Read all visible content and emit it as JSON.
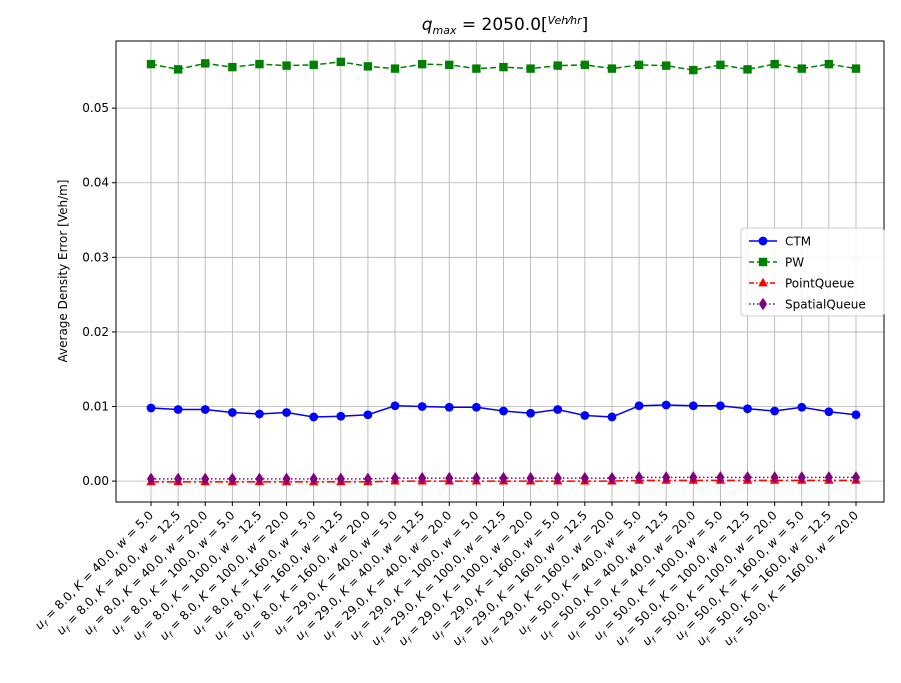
{
  "chart_data": {
    "type": "line",
    "title": "q_max = 2050.0[Veh/hr]",
    "title_parts": {
      "q": "q",
      "sub": "max",
      "eq": " = 2050.0[",
      "num": "Veh",
      "den": "hr",
      "close": "]"
    },
    "xlabel": "",
    "ylabel": "Average Density Error [Veh/m]",
    "ylim": [
      -0.0028,
      0.059
    ],
    "yticks": [
      0.0,
      0.01,
      0.02,
      0.03,
      0.04,
      0.05
    ],
    "ytick_labels": [
      "0.00",
      "0.01",
      "0.02",
      "0.03",
      "0.04",
      "0.05"
    ],
    "grid": true,
    "legend_position": "center-right",
    "categories": [
      "u_f = 8.0, K = 40.0, w = 5.0",
      "u_f = 8.0, K = 40.0, w = 12.5",
      "u_f = 8.0, K = 40.0, w = 20.0",
      "u_f = 8.0, K = 100.0, w = 5.0",
      "u_f = 8.0, K = 100.0, w = 12.5",
      "u_f = 8.0, K = 100.0, w = 20.0",
      "u_f = 8.0, K = 160.0, w = 5.0",
      "u_f = 8.0, K = 160.0, w = 12.5",
      "u_f = 8.0, K = 160.0, w = 20.0",
      "u_f = 29.0, K = 40.0, w = 5.0",
      "u_f = 29.0, K = 40.0, w = 12.5",
      "u_f = 29.0, K = 40.0, w = 20.0",
      "u_f = 29.0, K = 100.0, w = 5.0",
      "u_f = 29.0, K = 100.0, w = 12.5",
      "u_f = 29.0, K = 100.0, w = 20.0",
      "u_f = 29.0, K = 160.0, w = 5.0",
      "u_f = 29.0, K = 160.0, w = 12.5",
      "u_f = 29.0, K = 160.0, w = 20.0",
      "u_f = 50.0, K = 40.0, w = 5.0",
      "u_f = 50.0, K = 40.0, w = 12.5",
      "u_f = 50.0, K = 40.0, w = 20.0",
      "u_f = 50.0, K = 100.0, w = 5.0",
      "u_f = 50.0, K = 100.0, w = 12.5",
      "u_f = 50.0, K = 100.0, w = 20.0",
      "u_f = 50.0, K = 160.0, w = 5.0",
      "u_f = 50.0, K = 160.0, w = 12.5",
      "u_f = 50.0, K = 160.0, w = 20.0"
    ],
    "series": [
      {
        "name": "CTM",
        "color": "#0000ff",
        "marker": "circle",
        "linestyle": "solid",
        "values": [
          0.0098,
          0.0096,
          0.0096,
          0.0092,
          0.009,
          0.0092,
          0.0086,
          0.0087,
          0.0089,
          0.0101,
          0.01,
          0.0099,
          0.0099,
          0.0094,
          0.0091,
          0.0096,
          0.0088,
          0.0086,
          0.0101,
          0.0102,
          0.0101,
          0.0101,
          0.0097,
          0.0094,
          0.0099,
          0.0093,
          0.0089
        ]
      },
      {
        "name": "PW",
        "color": "#008000",
        "marker": "square",
        "linestyle": "dashed",
        "values": [
          0.0559,
          0.0552,
          0.056,
          0.0555,
          0.0559,
          0.0557,
          0.0558,
          0.0562,
          0.0556,
          0.0553,
          0.0559,
          0.0558,
          0.0553,
          0.0555,
          0.0553,
          0.0557,
          0.0558,
          0.0553,
          0.0558,
          0.0557,
          0.0551,
          0.0558,
          0.0552,
          0.0559,
          0.0553,
          0.0559,
          0.0553
        ]
      },
      {
        "name": "PointQueue",
        "color": "#ff0000",
        "marker": "triangle",
        "linestyle": "dashdot",
        "values": [
          -0.0001,
          -0.0001,
          -0.0001,
          -0.0001,
          -0.0001,
          -0.0001,
          -0.0001,
          -0.0001,
          -0.0001,
          0.0,
          0.0,
          0.0,
          0.0,
          0.0,
          0.0,
          0.0,
          0.0,
          0.0,
          0.0001,
          0.0001,
          0.0001,
          0.0001,
          0.0001,
          0.0001,
          0.0001,
          0.0001,
          0.0001
        ]
      },
      {
        "name": "SpatialQueue",
        "color": "#800080",
        "marker": "diamond",
        "linestyle": "dotted",
        "values": [
          0.0003,
          0.0003,
          0.0003,
          0.0003,
          0.0003,
          0.0003,
          0.0003,
          0.0003,
          0.0003,
          0.0004,
          0.0004,
          0.0004,
          0.0004,
          0.0004,
          0.0004,
          0.0004,
          0.0004,
          0.0004,
          0.0005,
          0.0005,
          0.0005,
          0.0005,
          0.0005,
          0.0005,
          0.0005,
          0.0005,
          0.0005
        ]
      }
    ]
  }
}
